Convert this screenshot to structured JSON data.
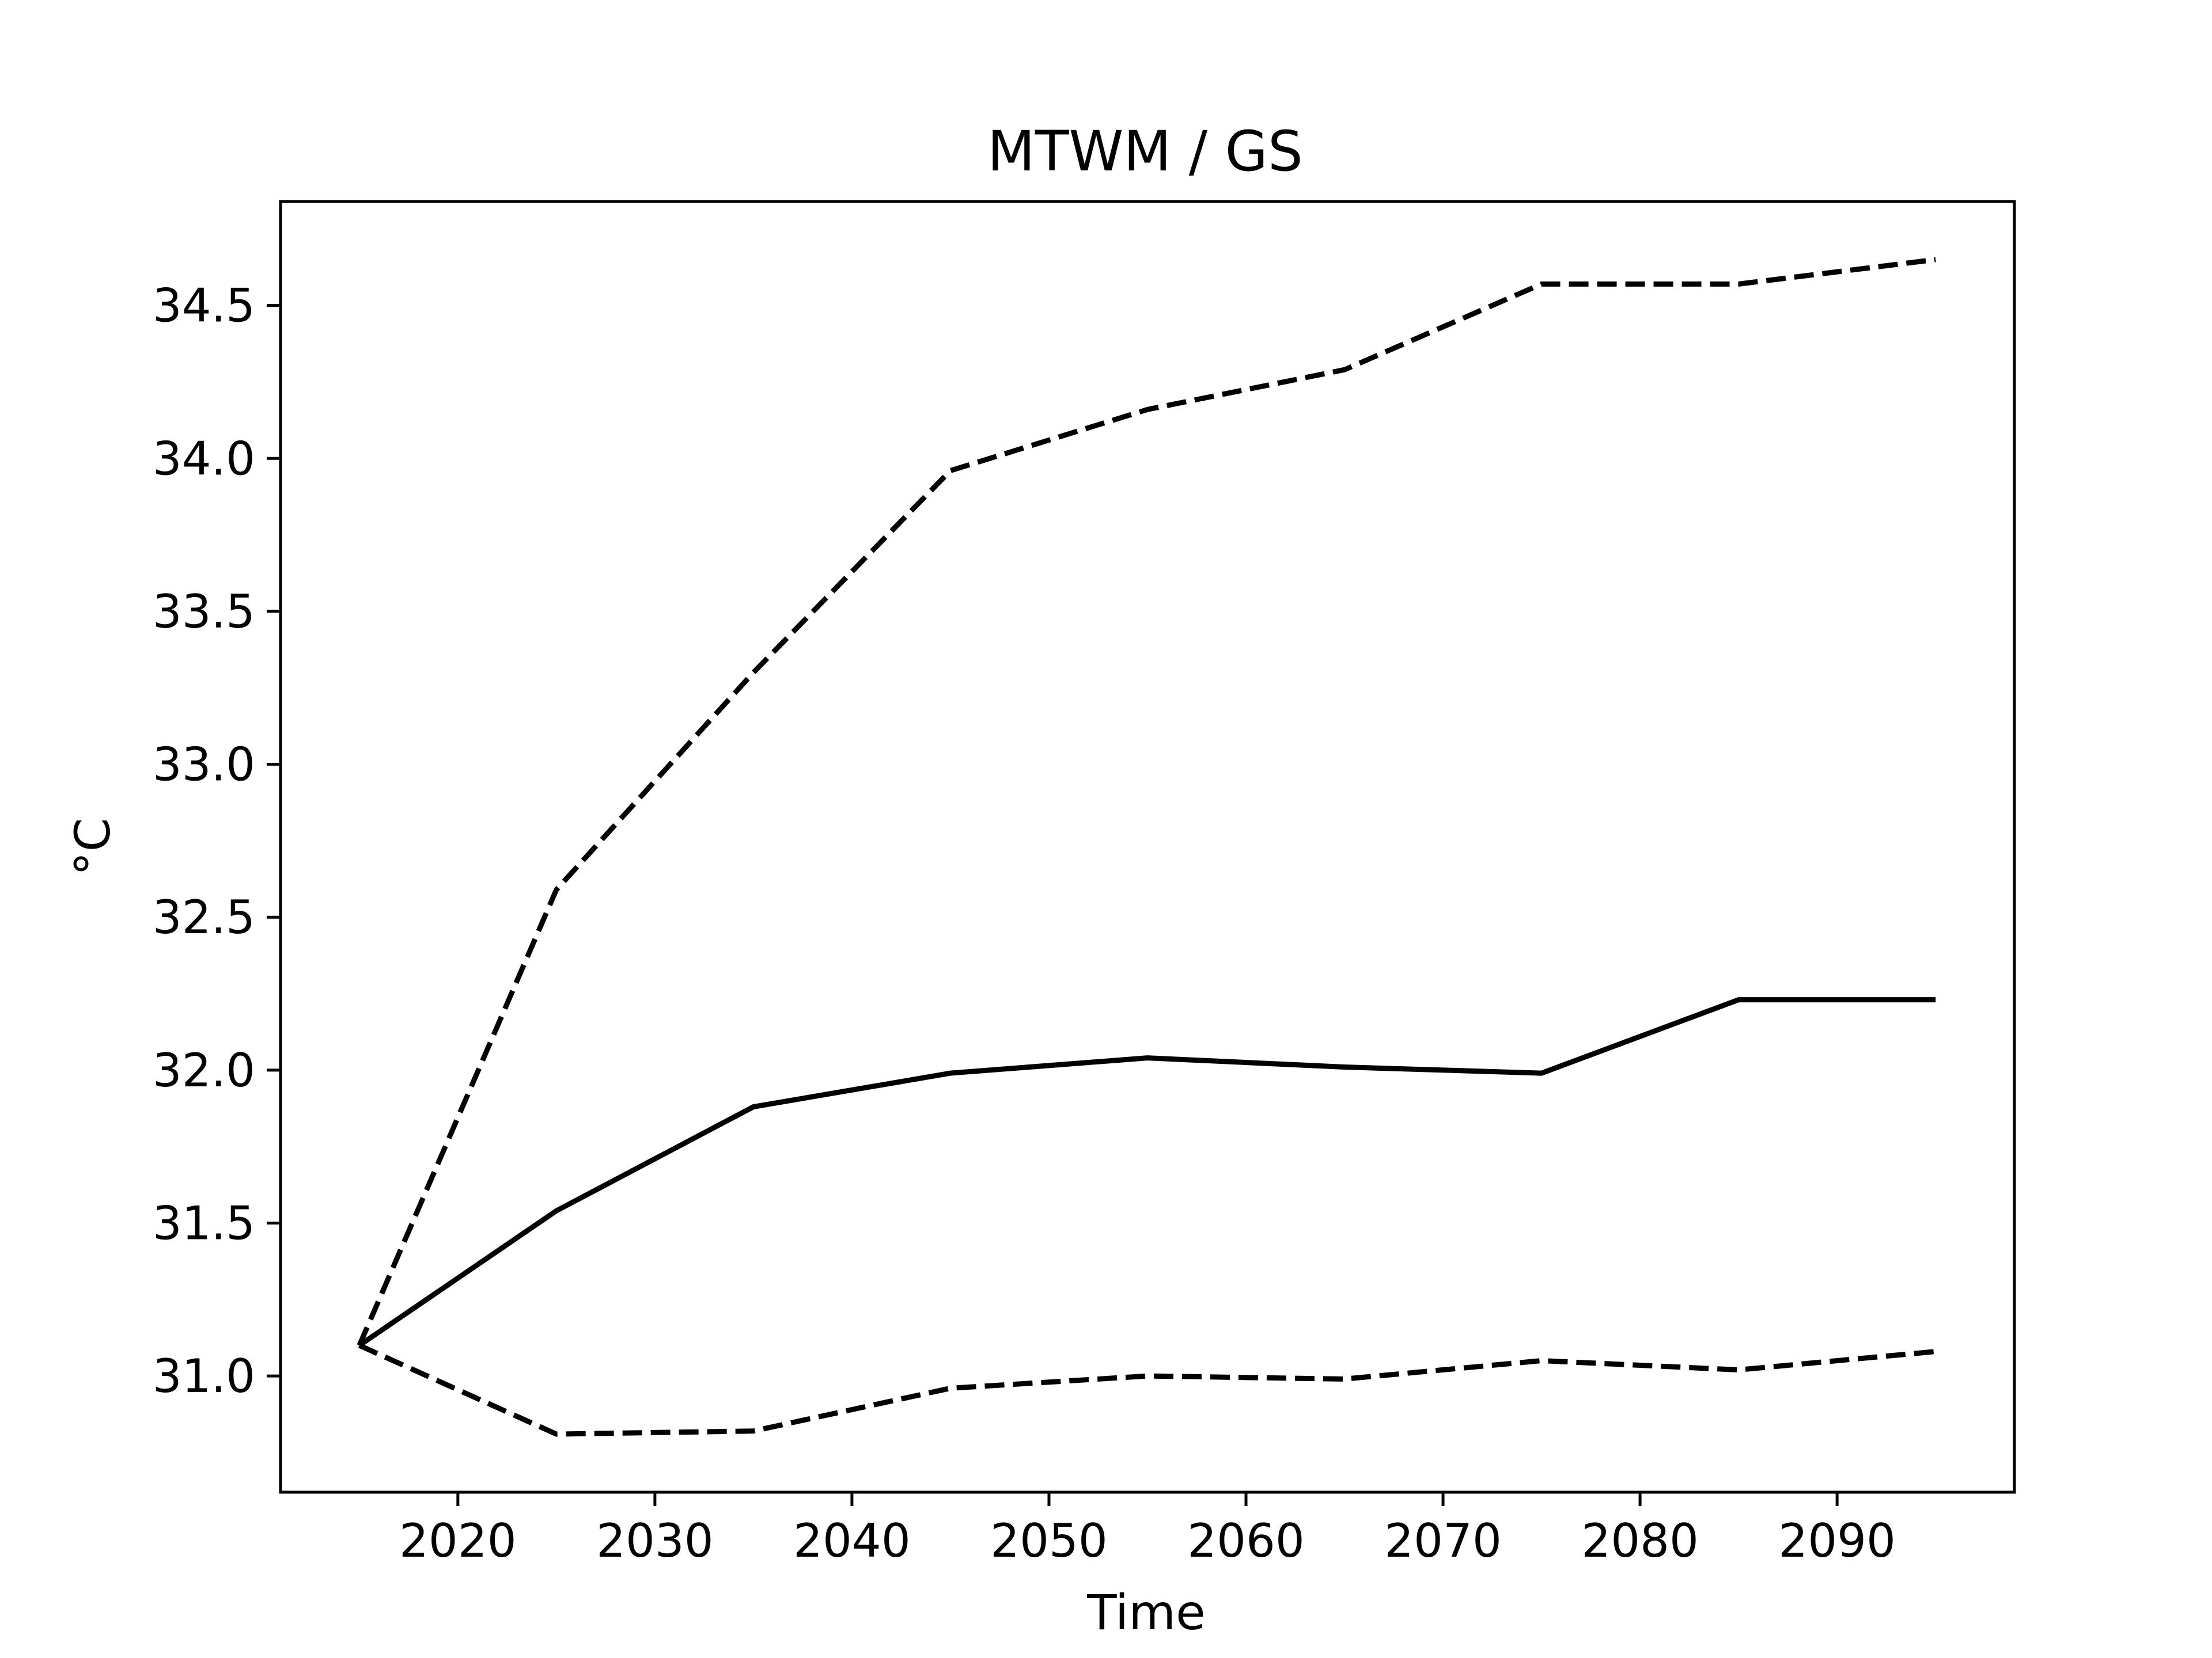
{
  "chart_data": {
    "type": "line",
    "title": "MTWM / GS",
    "xlabel": "Time",
    "ylabel": "°C",
    "xlim": [
      2011,
      2099
    ],
    "ylim": [
      30.62,
      34.84
    ],
    "xticks": [
      2020,
      2030,
      2040,
      2050,
      2060,
      2070,
      2080,
      2090
    ],
    "yticks": [
      "31.0",
      "31.5",
      "32.0",
      "32.5",
      "33.0",
      "33.5",
      "34.0",
      "34.5"
    ],
    "grid": false,
    "x": [
      2015,
      2025,
      2035,
      2045,
      2055,
      2065,
      2075,
      2085,
      2095
    ],
    "series": [
      {
        "style": "dashed",
        "color": "#000000",
        "values": [
          31.1,
          32.59,
          33.3,
          33.96,
          34.16,
          34.29,
          34.57,
          34.57,
          34.65
        ]
      },
      {
        "style": "solid",
        "color": "#000000",
        "values": [
          31.1,
          31.54,
          31.88,
          31.99,
          32.04,
          32.01,
          31.99,
          32.23,
          32.23
        ]
      },
      {
        "style": "dashed",
        "color": "#000000",
        "values": [
          31.1,
          30.81,
          30.82,
          30.96,
          31.0,
          30.99,
          31.05,
          31.02,
          31.08
        ]
      }
    ]
  }
}
